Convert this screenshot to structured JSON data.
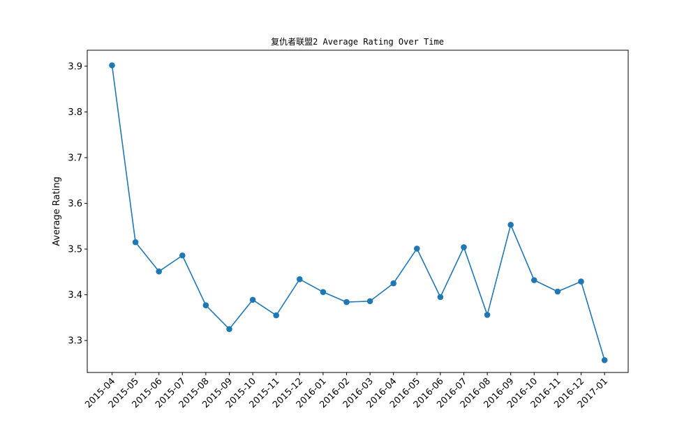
{
  "chart_data": {
    "type": "line",
    "title": "复仇者联盟2 Average Rating Over Time",
    "xlabel": "",
    "ylabel": "Average Rating",
    "categories": [
      "2015-04",
      "2015-05",
      "2015-06",
      "2015-07",
      "2015-08",
      "2015-09",
      "2015-10",
      "2015-11",
      "2015-12",
      "2016-01",
      "2016-02",
      "2016-03",
      "2016-04",
      "2016-05",
      "2016-06",
      "2016-07",
      "2016-08",
      "2016-09",
      "2016-10",
      "2016-11",
      "2016-12",
      "2017-01"
    ],
    "series": [
      {
        "values": [
          3.902,
          3.515,
          3.451,
          3.486,
          3.377,
          3.325,
          3.389,
          3.355,
          3.434,
          3.406,
          3.384,
          3.386,
          3.425,
          3.501,
          3.395,
          3.504,
          3.356,
          3.553,
          3.432,
          3.407,
          3.429,
          3.257
        ],
        "color": "#1f77b4",
        "marker": "circle"
      }
    ],
    "ylim": [
      3.23,
      3.935
    ],
    "yticks": [
      3.3,
      3.4,
      3.5,
      3.6,
      3.7,
      3.8,
      3.9
    ],
    "grid": false,
    "legend": "none"
  }
}
